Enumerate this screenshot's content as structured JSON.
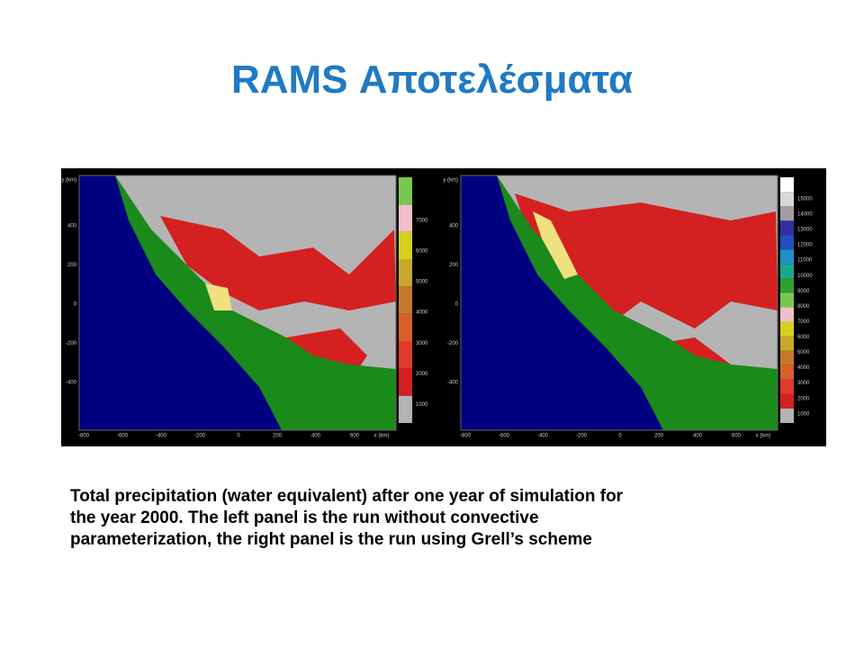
{
  "title": "RAMS Αποτελέσματα",
  "figure": {
    "panels": [
      {
        "x_ticks": [
          "-800",
          "-600",
          "-400",
          "-200",
          "0",
          "200",
          "400",
          "600"
        ],
        "x_unit": "x (km)",
        "y_ticks": [
          "400",
          "200",
          "0",
          "-200",
          "-400"
        ],
        "y_unit": "y (km)",
        "colorbar": {
          "labels": [
            "1000",
            "2000",
            "3000",
            "4000",
            "5000",
            "6000",
            "7000"
          ],
          "colors": [
            "#b4b4b4",
            "#d42020",
            "#e03a2a",
            "#d8602a",
            "#c8782c",
            "#c8a82c",
            "#d8d020",
            "#f0c0c8",
            "#78c850"
          ]
        }
      },
      {
        "x_ticks": [
          "-800",
          "-600",
          "-400",
          "-200",
          "0",
          "200",
          "400",
          "600"
        ],
        "x_unit": "x (km)",
        "y_ticks": [
          "400",
          "200",
          "0",
          "-200",
          "-400"
        ],
        "y_unit": "y (km)",
        "colorbar": {
          "labels": [
            "1000",
            "2000",
            "3000",
            "4000",
            "5000",
            "6000",
            "7000",
            "8000",
            "9000",
            "10000",
            "11000",
            "12000",
            "13000",
            "14000",
            "15000"
          ],
          "colors": [
            "#b4b4b4",
            "#d42020",
            "#e03a2a",
            "#d8602a",
            "#c8782c",
            "#c8a82c",
            "#d8d020",
            "#f0c0c8",
            "#78c850",
            "#30a030",
            "#18a890",
            "#2090c8",
            "#2050c0",
            "#3030a0",
            "#a0a0a0",
            "#d8d8d8",
            "#ffffff"
          ]
        }
      }
    ]
  },
  "caption": [
    "Total precipitation (water equivalent) after one year of simulation for",
    "the year 2000. The left panel is the run without convective",
    "parameterization, the right panel is the run using Grell’s scheme"
  ]
}
